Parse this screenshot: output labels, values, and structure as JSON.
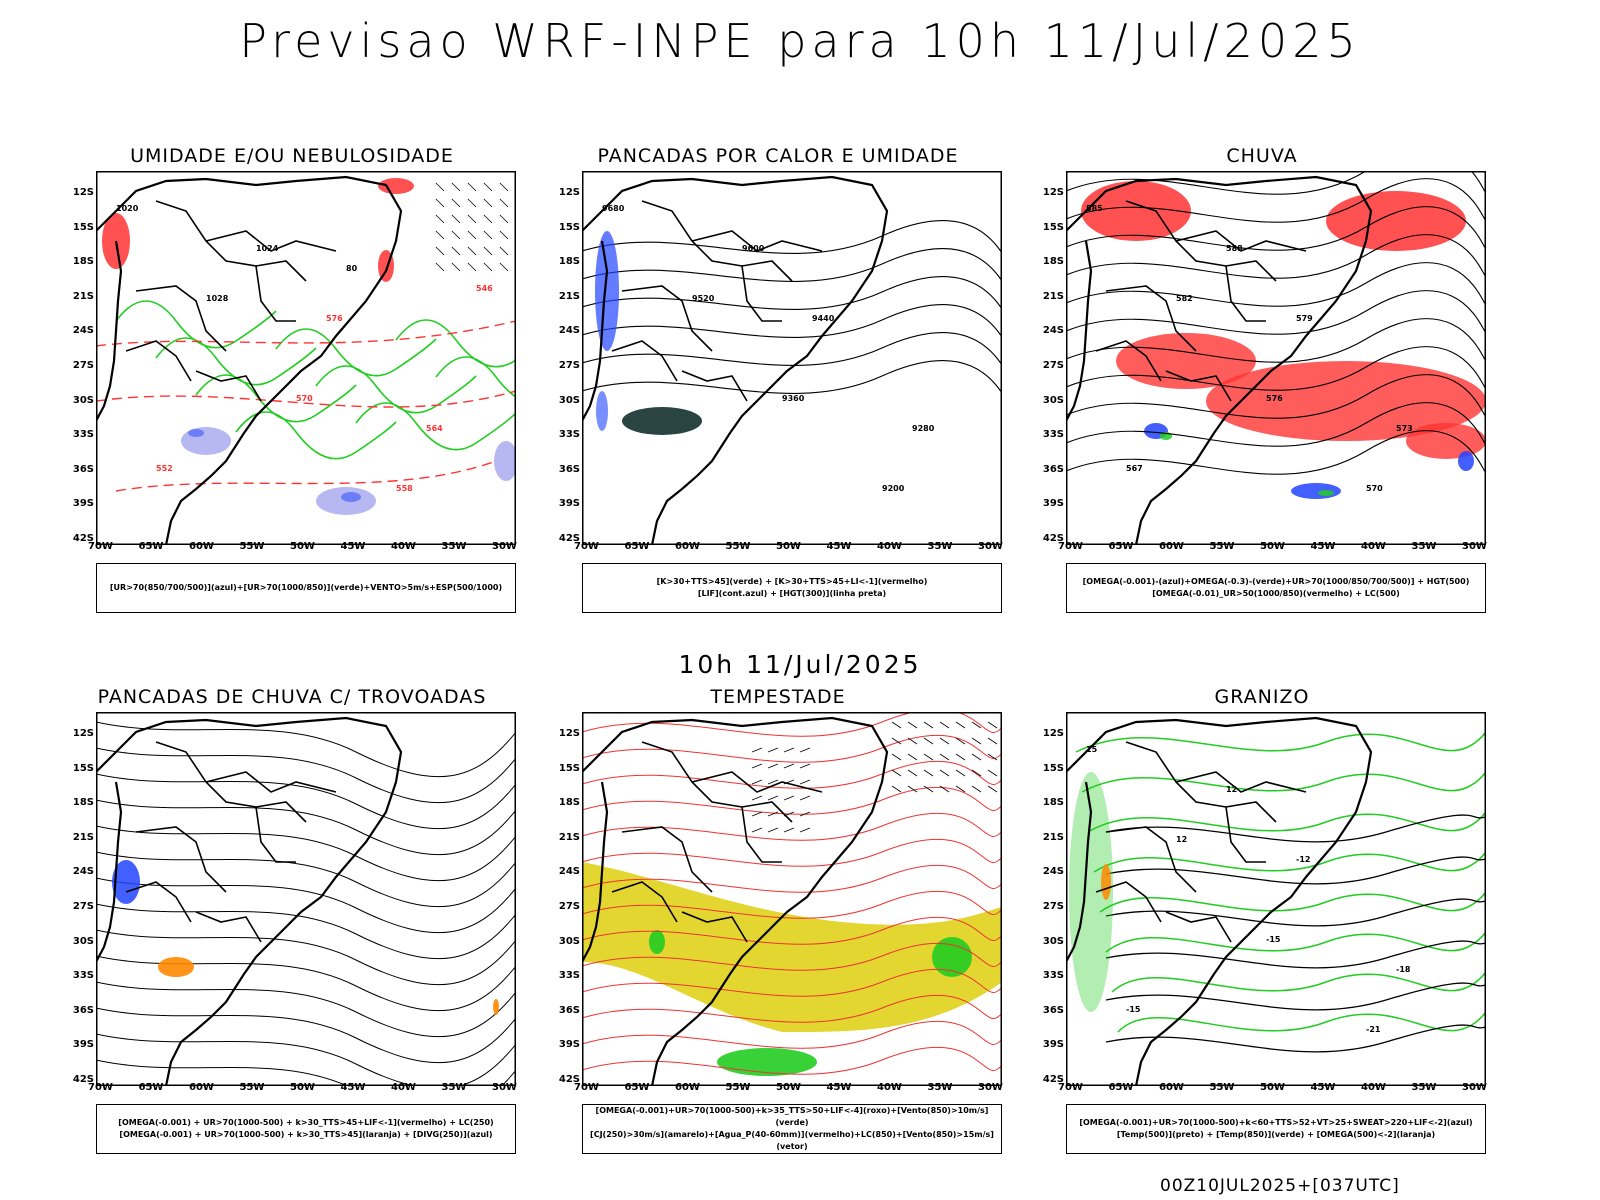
{
  "header": {
    "title": "Previsao WRF-INPE  para 10h 11/Jul/2025",
    "subtitle": "10h 11/Jul/2025",
    "footer": "00Z10JUL2025+[037UTC]"
  },
  "axes": {
    "lat_labels": [
      "12S",
      "15S",
      "18S",
      "21S",
      "24S",
      "27S",
      "30S",
      "33S",
      "36S",
      "39S",
      "42S"
    ],
    "lon_labels": [
      "70W",
      "65W",
      "60W",
      "55W",
      "50W",
      "45W",
      "40W",
      "35W",
      "30W"
    ]
  },
  "colors": {
    "green": "#22cc22",
    "red": "#ff3333",
    "blue": "#2244ff",
    "lilac": "#aaaaee",
    "yellow": "#e0d21a",
    "orange": "#ff8800",
    "darkgreen": "#1f3a38"
  },
  "panels": [
    {
      "title": "UMIDADE E/OU NEBULOSIDADE",
      "legend": [
        "[UR>70(850/700/500)](azul)+[UR>70(1000/850)](verde)+VENTO>5m/s+ESP(500/1000)"
      ],
      "labels": [
        "1020",
        "1024",
        "1028",
        "576",
        "570",
        "564",
        "558",
        "552",
        "546",
        "80"
      ]
    },
    {
      "title": "PANCADAS POR CALOR E UMIDADE",
      "legend": [
        "[K>30+TTS>45](verde) + [K>30+TTS>45+LI<-1](vermelho)",
        "[LIF](cont.azul) + [HGT(300)](linha preta)"
      ],
      "labels": [
        "9680",
        "9600",
        "9520",
        "9440",
        "9360",
        "9280",
        "9200"
      ]
    },
    {
      "title": "CHUVA",
      "legend": [
        "[OMEGA(-0.001)-(azul)+OMEGA(-0.3)-(verde)+UR>70(1000/850/700/500)] + HGT(500)",
        "[OMEGA(-0.01)_UR>50(1000/850)(vermelho) + LC(500)"
      ],
      "labels": [
        "585",
        "588",
        "582",
        "579",
        "576",
        "573",
        "570",
        "567"
      ]
    },
    {
      "title": "PANCADAS DE CHUVA C/ TROVOADAS",
      "legend": [
        "[OMEGA(-0.001) + UR>70(1000-500) + k>30_TTS>45+LIF<-1](vermelho) + LC(250)",
        "[OMEGA(-0.001) + UR>70(1000-500) + k>30_TTS>45](laranja) + [DIVG(250)](azul)"
      ],
      "labels": []
    },
    {
      "title": "TEMPESTADE",
      "legend": [
        "[OMEGA(-0.001)+UR>70(1000-500)+k>35_TTS>50+LIF<-4](roxo)+[Vento(850)>10m/s](verde)",
        "[CJ(250)>30m/s](amarelo)+[Agua_P(40-60mm)](vermelho)+LC(850)+[Vento(850)>15m/s](vetor)"
      ],
      "labels": []
    },
    {
      "title": "GRANIZO",
      "legend": [
        "[OMEGA(-0.001)+UR>70(1000-500)+k<60+TTS>52+VT>25+SWEAT>220+LIF<-2](azul)",
        "[Temp(500)](preto) + [Temp(850)](verde) + [OMEGA(500)<-2](laranja)"
      ],
      "labels": [
        "15",
        "12",
        "12",
        "-12",
        "-15",
        "-18",
        "-21",
        "-15"
      ]
    }
  ]
}
